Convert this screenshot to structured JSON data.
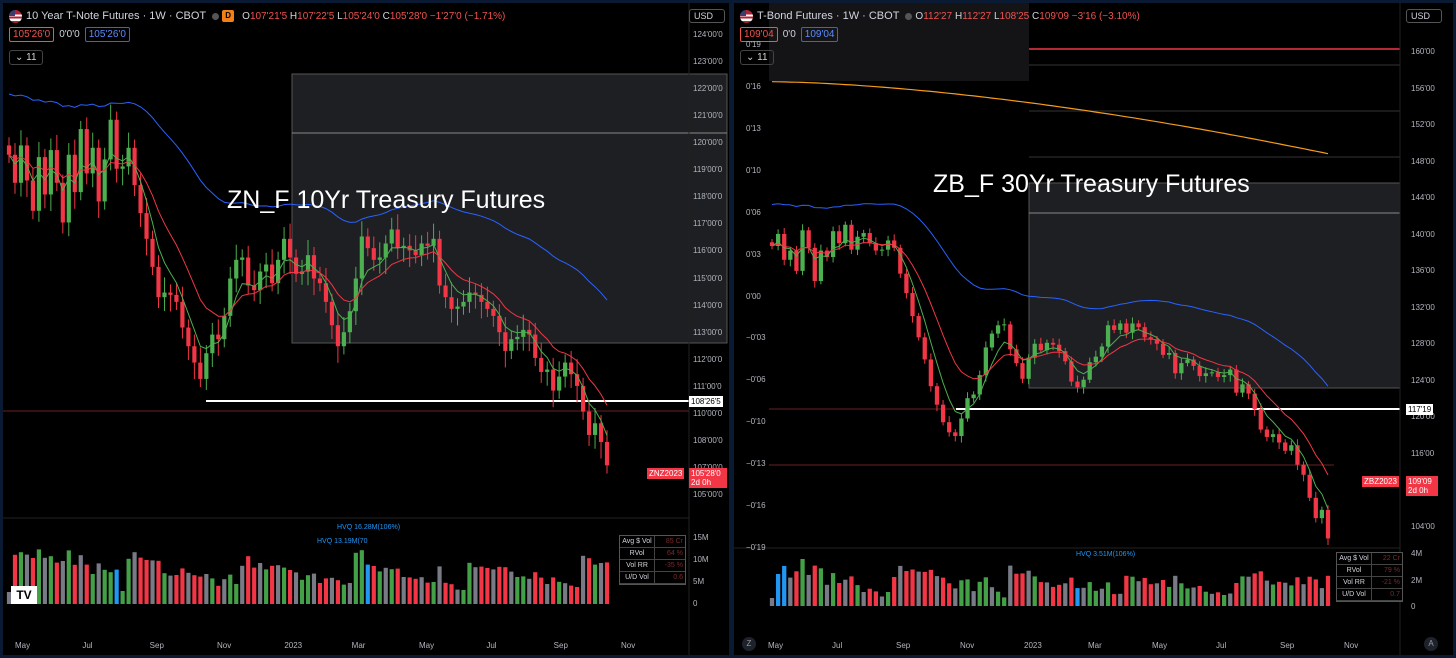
{
  "colors": {
    "up": "#4caf50",
    "down": "#f23645",
    "ema_fast": "#4caf50",
    "ema_mid": "#2962ff",
    "ema_slow": "#f23645",
    "support": "#ffffff",
    "vol_up": "#43a047",
    "vol_down": "#f23645",
    "vol_neutral": "#787b86",
    "vol_hvq": "#2196f3"
  },
  "left": {
    "header": {
      "title": "10 Year T-Note Futures · 1W · CBOT",
      "interval": "D",
      "open": "107'21'5",
      "high": "107'22'5",
      "low": "105'24'0",
      "close": "105'28'0",
      "change": "−1'27'0 (−1.71%)",
      "bid": "105'26'0",
      "spread": "0'0'0",
      "ask": "105'26'0",
      "indicator_count": "11",
      "currency": "USD"
    },
    "watermark": "ZN_F 10Yr Treasury Futures",
    "axis_ticks": [
      "124'00'0",
      "123'00'0",
      "122'00'0",
      "121'00'0",
      "120'00'0",
      "119'00'0",
      "118'00'0",
      "117'00'0",
      "116'00'0",
      "115'00'0",
      "114'00'0",
      "113'00'0",
      "112'00'0",
      "111'00'0",
      "110'00'0",
      "108'00'0",
      "107'00'0",
      "105'00'0"
    ],
    "support_label": "108'26'5",
    "price_label": "105'28'0",
    "symbol_tag": "ZNZ2023",
    "countdown": "2d 0h",
    "vol_ticks": [
      "15M",
      "10M",
      "5M",
      "0"
    ],
    "hvq_labels": [
      "HVQ 16.28M(106%)",
      "HVQ 13.19M(70"
    ],
    "vol_table": [
      {
        "k": "Avg $ Vol",
        "v": "85 Cr"
      },
      {
        "k": "RVol",
        "v": "64 %"
      },
      {
        "k": "Vol RR",
        "v": "-35 %"
      },
      {
        "k": "U/D Vol",
        "v": "0.6"
      }
    ],
    "x_labels": [
      "May",
      "Jul",
      "Sep",
      "Nov",
      "2023",
      "Mar",
      "May",
      "Jul",
      "Sep",
      "Nov"
    ],
    "logo": "TV"
  },
  "right": {
    "header": {
      "title": "T-Bond Futures · 1W · CBOT",
      "open": "112'27",
      "high": "112'27",
      "low": "108'25",
      "close": "109'09",
      "change": "−3'16 (−3.10%)",
      "bid": "109'04",
      "spread": "0'0",
      "ask": "109'04",
      "indicator_count": "11",
      "currency": "USD"
    },
    "watermark": "ZB_F 30Yr Treasury Futures",
    "axis_ticks": [
      "160'00",
      "156'00",
      "152'00",
      "148'00",
      "144'00",
      "140'00",
      "136'00",
      "132'00",
      "128'00",
      "124'00",
      "120'00",
      "116'00",
      "112'00",
      "104'00"
    ],
    "left_ticks": [
      "0'19",
      "0'16",
      "0'13",
      "0'10",
      "0'06",
      "0'03",
      "0'00",
      "−0'03",
      "−0'06",
      "−0'10",
      "−0'13",
      "−0'16",
      "−0'19"
    ],
    "support_label": "117'19",
    "price_label": "109'09",
    "symbol_tag": "ZBZ2023",
    "countdown": "2d 0h",
    "vol_ticks": [
      "4M",
      "2M",
      "0"
    ],
    "hvq_labels": [
      "HVQ 3.51M(106%)"
    ],
    "vol_table": [
      {
        "k": "Avg $ Vol",
        "v": "22 Cr"
      },
      {
        "k": "RVol",
        "v": "79 %"
      },
      {
        "k": "Vol RR",
        "v": "-21 %"
      },
      {
        "k": "U/D Vol",
        "v": "0.7"
      }
    ],
    "x_labels": [
      "May",
      "Jul",
      "Sep",
      "Nov",
      "2023",
      "Mar",
      "May",
      "Jul",
      "Sep",
      "Nov"
    ],
    "bottom_z": "Z",
    "bottom_a": "A"
  },
  "chart_data": [
    {
      "type": "candlestick",
      "title": "ZN_F 10Yr Treasury Futures",
      "interval": "1W",
      "ylim": [
        104.5,
        124.5
      ],
      "closes": [
        119.2,
        118.0,
        119.6,
        118.1,
        116.8,
        119.1,
        117.5,
        119.4,
        118.0,
        116.3,
        119.2,
        117.6,
        120.3,
        118.4,
        119.5,
        117.2,
        119.0,
        120.7,
        118.6,
        118.7,
        119.5,
        117.9,
        116.7,
        115.6,
        114.4,
        113.1,
        113.3,
        113.2,
        112.9,
        111.8,
        111.0,
        110.3,
        109.6,
        110.7,
        111.5,
        111.3,
        112.3,
        113.9,
        114.7,
        114.8,
        113.6,
        113.4,
        114.2,
        114.5,
        113.7,
        114.7,
        115.6,
        114.8,
        114.1,
        114.2,
        114.9,
        113.9,
        113.7,
        112.9,
        111.9,
        111.0,
        111.6,
        112.5,
        113.9,
        115.7,
        115.2,
        114.7,
        114.8,
        115.4,
        116.0,
        115.2,
        115.3,
        115.1,
        114.9,
        115.4,
        115.3,
        115.6,
        113.6,
        113.1,
        112.6,
        112.7,
        112.9,
        113.3,
        113.2,
        112.9,
        112.6,
        112.3,
        111.6,
        110.8,
        111.3,
        111.4,
        111.7,
        111.5,
        110.5,
        109.9,
        110.0,
        109.1,
        109.7,
        110.3,
        109.8,
        109.3,
        108.2,
        107.2,
        107.7,
        106.9,
        105.9
      ],
      "ema_short_last": 108.5,
      "ema_long_last": 112.5,
      "ema_mid_last": 110.3,
      "support_level": 108.83,
      "last_price": 105.875
    },
    {
      "type": "candlestick",
      "title": "ZB_F 30Yr Treasury Futures",
      "interval": "1W",
      "ylim": [
        101,
        163
      ],
      "closes": [
        141.0,
        142.3,
        139.5,
        140.5,
        138.3,
        142.7,
        140.8,
        137.2,
        140.5,
        139.8,
        142.6,
        141.3,
        143.3,
        140.6,
        142.0,
        142.4,
        141.3,
        140.5,
        140.6,
        141.6,
        140.8,
        138.0,
        135.9,
        133.4,
        131.1,
        128.7,
        125.8,
        123.8,
        121.9,
        120.8,
        120.4,
        122.3,
        124.5,
        124.9,
        127.0,
        130.0,
        131.5,
        132.4,
        132.5,
        129.8,
        128.3,
        126.6,
        128.9,
        130.4,
        129.7,
        130.5,
        130.3,
        129.6,
        128.5,
        126.3,
        125.7,
        126.5,
        128.4,
        129.0,
        130.1,
        132.4,
        131.9,
        132.6,
        131.6,
        132.6,
        132.2,
        131.1,
        130.9,
        130.4,
        129.2,
        129.4,
        127.2,
        128.3,
        128.7,
        128.0,
        126.9,
        127.2,
        127.3,
        126.8,
        127.0,
        127.6,
        125.1,
        126.0,
        125.0,
        123.3,
        121.1,
        120.3,
        120.6,
        119.7,
        118.8,
        119.4,
        117.3,
        116.2,
        113.7,
        111.5,
        112.4,
        109.3
      ],
      "ema_200_last": 151.0,
      "support_level": 117.6,
      "last_price": 109.28
    }
  ]
}
